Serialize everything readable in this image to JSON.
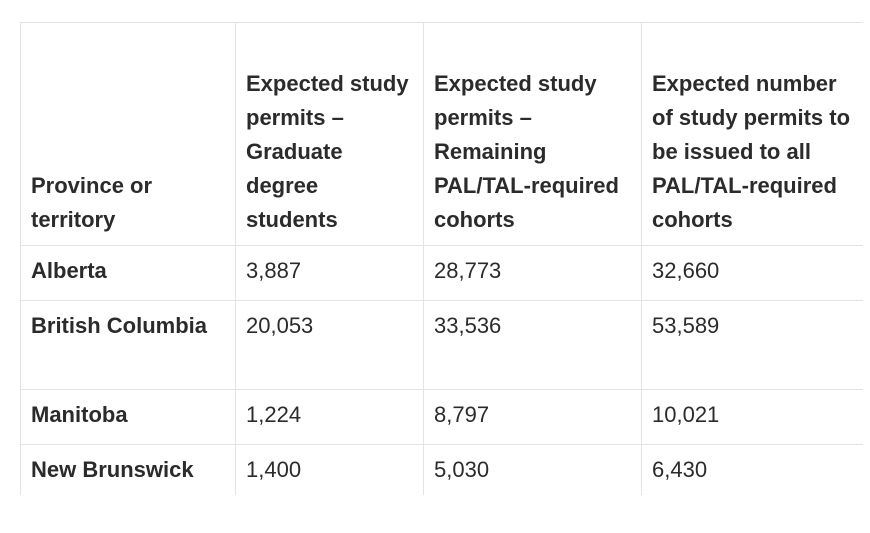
{
  "table": {
    "header": [
      "Province or territory",
      "Expected study permits – Graduate degree students",
      "Expected study permits – Remaining PAL/TAL-required cohorts",
      "Expected number of study permits to be issued to all PAL/TAL-required cohorts"
    ],
    "rows": [
      [
        "Alberta",
        "3,887",
        "28,773",
        "32,660"
      ],
      [
        "British Columbia",
        "20,053",
        "33,536",
        "53,589"
      ],
      [
        "Manitoba",
        "1,224",
        "8,797",
        "10,021"
      ],
      [
        "New Brunswick",
        "1,400",
        "5,030",
        "6,430"
      ]
    ]
  }
}
